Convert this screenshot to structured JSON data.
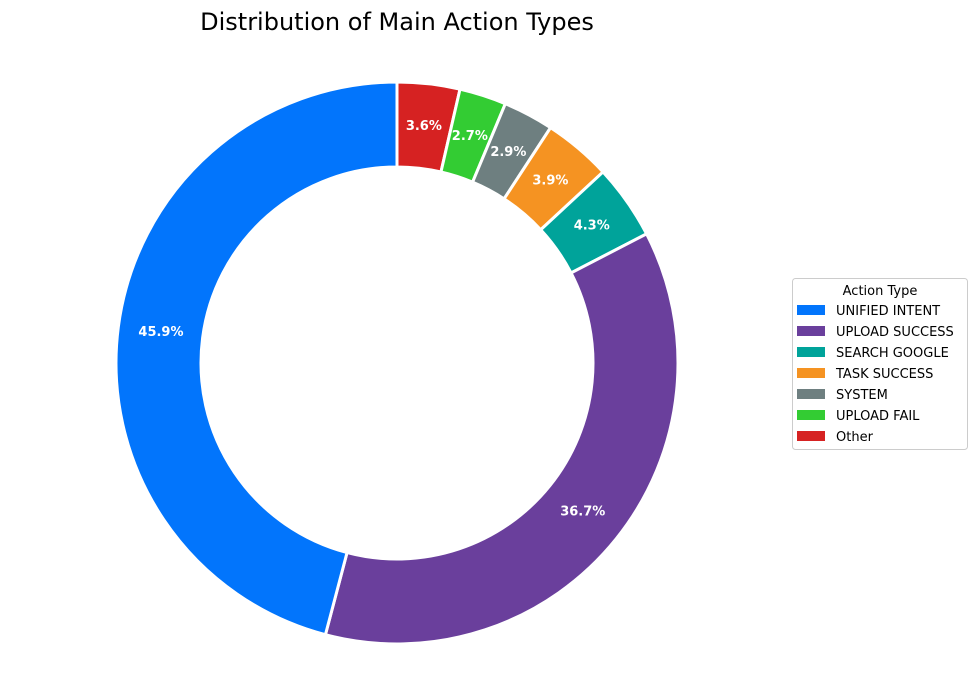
{
  "chart_data": {
    "type": "pie",
    "variant": "donut",
    "title": "Distribution of Main Action Types",
    "legend_title": "Action Type",
    "legend_position": "right",
    "start_angle": "top, clockwise (Other first, UNIFIED INTENT last)",
    "slices": [
      {
        "name": "UNIFIED INTENT",
        "value": 45.9,
        "label": "45.9%",
        "color": "#0275FC"
      },
      {
        "name": "UPLOAD SUCCESS",
        "value": 36.7,
        "label": "36.7%",
        "color": "#6A3F9C"
      },
      {
        "name": "SEARCH GOOGLE",
        "value": 4.3,
        "label": "4.3%",
        "color": "#00A39A"
      },
      {
        "name": "TASK SUCCESS",
        "value": 3.9,
        "label": "3.9%",
        "color": "#F59322"
      },
      {
        "name": "SYSTEM",
        "value": 2.9,
        "label": "2.9%",
        "color": "#6E7F80"
      },
      {
        "name": "UPLOAD FAIL",
        "value": 2.7,
        "label": "2.7%",
        "color": "#33CC33"
      },
      {
        "name": "Other",
        "value": 3.6,
        "label": "3.6%",
        "color": "#D62222"
      }
    ]
  }
}
